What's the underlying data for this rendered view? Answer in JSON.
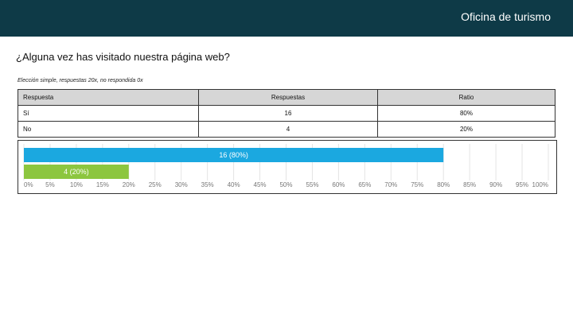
{
  "header": {
    "title": "Oficina de turismo"
  },
  "question": {
    "text": "¿Alguna vez has visitado nuestra página web?"
  },
  "summary": {
    "text": "Elección simple, respuestas 20x, no respondida 0x"
  },
  "table": {
    "columns": [
      "Respuesta",
      "Respuestas",
      "Ratio"
    ],
    "rows": [
      {
        "answer": "Sí",
        "count": "16",
        "ratio": "80%"
      },
      {
        "answer": "No",
        "count": "4",
        "ratio": "20%"
      }
    ]
  },
  "chart_data": {
    "type": "bar",
    "orientation": "horizontal",
    "categories": [
      "Sí",
      "No"
    ],
    "values": [
      80,
      20
    ],
    "counts": [
      16,
      4
    ],
    "bar_labels": [
      "16 (80%)",
      "4 (20%)"
    ],
    "colors": [
      "#1ba8e0",
      "#8cc63f"
    ],
    "xlim": [
      0,
      100
    ],
    "x_ticks": [
      0,
      5,
      10,
      15,
      20,
      25,
      30,
      35,
      40,
      45,
      50,
      55,
      60,
      65,
      70,
      75,
      80,
      85,
      90,
      95,
      100
    ],
    "x_tick_labels": [
      "0%",
      "5%",
      "10%",
      "15%",
      "20%",
      "25%",
      "30%",
      "35%",
      "40%",
      "45%",
      "50%",
      "55%",
      "60%",
      "65%",
      "70%",
      "75%",
      "80%",
      "85%",
      "90%",
      "95%",
      "100%"
    ],
    "grid": true
  }
}
